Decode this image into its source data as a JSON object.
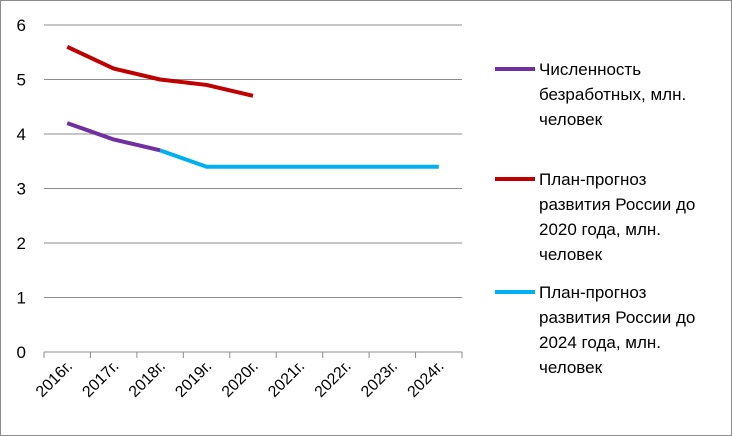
{
  "chart_data": {
    "type": "line",
    "categories": [
      "2016г.",
      "2017г.",
      "2018г.",
      "2019г.",
      "2020г.",
      "2021г.",
      "2022г.",
      "2023г.",
      "2024г."
    ],
    "ylim": [
      0,
      6
    ],
    "yticks": [
      0,
      1,
      2,
      3,
      4,
      5,
      6
    ],
    "grid": true,
    "legend_position": "right",
    "series": [
      {
        "name": "Численность безработных, млн. человек",
        "color": "#7030a0",
        "points": [
          [
            0,
            4.2
          ],
          [
            1,
            3.9
          ],
          [
            2,
            3.7
          ]
        ]
      },
      {
        "name": "План-прогноз развития России до 2020 года, млн. человек",
        "color": "#c00000",
        "points": [
          [
            0,
            5.6
          ],
          [
            1,
            5.2
          ],
          [
            2,
            5.0
          ],
          [
            3,
            4.9
          ],
          [
            4,
            4.7
          ]
        ]
      },
      {
        "name": "План-прогноз развития России до 2024 года, млн. человек",
        "color": "#00b0f0",
        "points": [
          [
            2,
            3.7
          ],
          [
            3,
            3.4
          ],
          [
            4,
            3.4
          ],
          [
            5,
            3.4
          ],
          [
            6,
            3.4
          ],
          [
            7,
            3.4
          ],
          [
            8,
            3.4
          ]
        ]
      }
    ],
    "legend_lines": [
      [
        "Численность",
        "безработных, млн.",
        "человек"
      ],
      [
        "План-прогноз",
        "развития России до",
        "2020 года, млн.",
        "человек"
      ],
      [
        "План-прогноз",
        "развития России до",
        "2024 года, млн.",
        "человек"
      ]
    ]
  }
}
